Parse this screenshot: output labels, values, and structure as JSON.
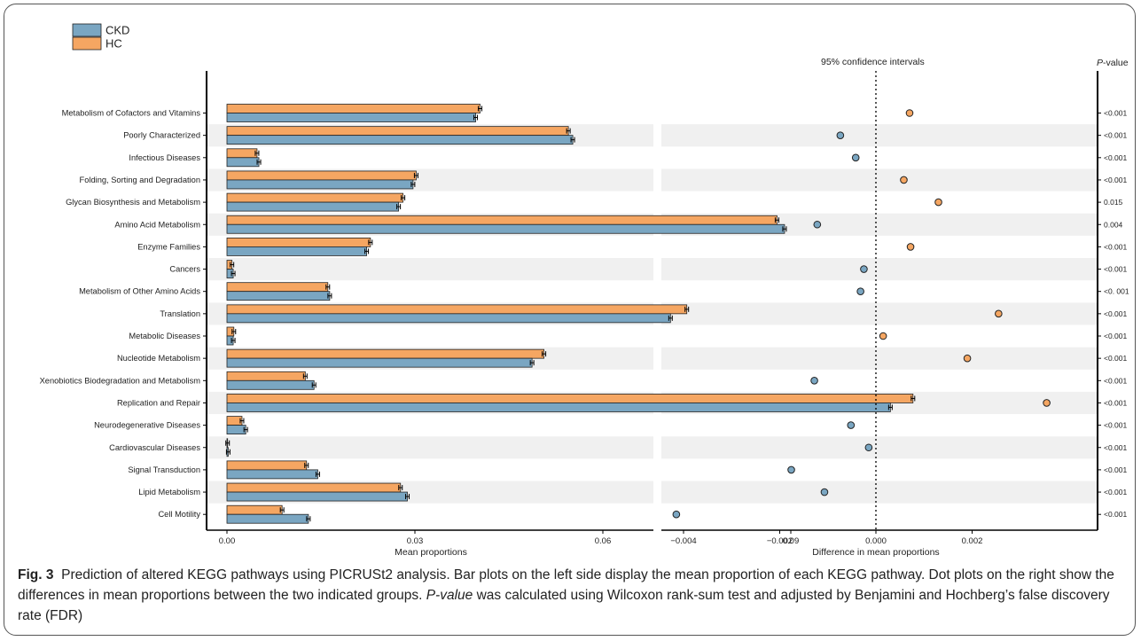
{
  "legend": [
    {
      "label": "CKD",
      "color": "#7aa6c2"
    },
    {
      "label": "HC",
      "color": "#f5a662"
    }
  ],
  "headers": {
    "ci": "95% confidence intervals",
    "pvalue_italic": "P",
    "pvalue_rest": "-value"
  },
  "caption": {
    "label": "Fig. 3",
    "text1": "Prediction of altered KEGG pathways using PICRUSt2 analysis. Bar plots on the left side display the mean proportion of each KEGG pathway. Dot plots on the right show the differences in mean proportions between the two indicated groups. ",
    "italic": "P-value",
    "text2": " was calculated using Wilcoxon rank-sum test and adjusted by Benjamini and Hochberg’s false discovery rate (FDR)"
  },
  "chart_data": [
    {
      "type": "bar",
      "orientation": "horizontal",
      "categories": [
        "Metabolism of Cofactors and Vitamins",
        "Poorly Characterized",
        "Infectious Diseases",
        "Folding, Sorting and Degradation",
        "Glycan Biosynthesis and Metabolism",
        "Amino Acid Metabolism",
        "Enzyme Families",
        "Cancers",
        "Metabolism of Other Amino Acids",
        "Translation",
        "Metabolic Diseases",
        "Nucleotide Metabolism",
        "Xenobiotics Biodegradation and Metabolism",
        "Replication and Repair",
        "Neurodegenerative Diseases",
        "Cardiovascular Diseases",
        "Signal Transduction",
        "Lipid Metabolism",
        "Cell Motility"
      ],
      "series": [
        {
          "name": "HC",
          "color": "#f5a662",
          "values": [
            0.0404,
            0.0545,
            0.0048,
            0.0302,
            0.0281,
            0.0878,
            0.0229,
            0.0008,
            0.0161,
            0.0734,
            0.0011,
            0.0506,
            0.0125,
            0.1095,
            0.0024,
            0.0001,
            0.0127,
            0.0277,
            0.0088
          ]
        },
        {
          "name": "CKD",
          "color": "#7aa6c2",
          "values": [
            0.0397,
            0.0552,
            0.0051,
            0.0297,
            0.0274,
            0.089,
            0.0223,
            0.001,
            0.0164,
            0.0708,
            0.001,
            0.0487,
            0.0139,
            0.1059,
            0.003,
            0.0002,
            0.0145,
            0.0288,
            0.013
          ]
        }
      ],
      "xlabel": "Mean proportions",
      "xticks": [
        "0.00",
        "0.03",
        "0.06",
        "0.09"
      ],
      "xlim": [
        0,
        0.115
      ]
    },
    {
      "type": "scatter",
      "categories": [
        "Metabolism of Cofactors and Vitamins",
        "Poorly Characterized",
        "Infectious Diseases",
        "Folding, Sorting and Degradation",
        "Glycan Biosynthesis and Metabolism",
        "Amino Acid Metabolism",
        "Enzyme Families",
        "Cancers",
        "Metabolism of Other Amino Acids",
        "Translation",
        "Metabolic Diseases",
        "Nucleotide Metabolism",
        "Xenobiotics Biodegradation and Metabolism",
        "Replication and Repair",
        "Neurodegenerative Diseases",
        "Cardiovascular Diseases",
        "Signal Transduction",
        "Lipid Metabolism",
        "Cell Motility"
      ],
      "values": [
        0.0007,
        -0.00074,
        -0.00042,
        0.00058,
        0.0013,
        -0.00122,
        0.00072,
        -0.00025,
        -0.00032,
        0.00255,
        0.00015,
        0.0019,
        -0.00128,
        0.00355,
        -0.00052,
        -0.00015,
        -0.00176,
        -0.00107,
        -0.00415
      ],
      "groups": [
        "HC",
        "CKD",
        "CKD",
        "HC",
        "HC",
        "CKD",
        "HC",
        "CKD",
        "CKD",
        "HC",
        "HC",
        "HC",
        "CKD",
        "HC",
        "CKD",
        "CKD",
        "CKD",
        "CKD",
        "CKD"
      ],
      "pvalues": [
        "<0.001",
        "<0.001",
        "<0.001",
        "<0.001",
        "0.015",
        "0.004",
        "<0.001",
        "<0.001",
        "<0. 001",
        "<0.001",
        "<0.001",
        "<0.001",
        "<0.001",
        "<0.001",
        "<0.001",
        "<0.001",
        "<0.001",
        "<0.001",
        "<0.001"
      ],
      "xlabel": "Difference in mean proportions",
      "xticks": [
        "−0.004",
        "−0.002",
        "0.000",
        "0.002"
      ],
      "tick_values": [
        -0.004,
        -0.002,
        0.0,
        0.002
      ],
      "xlim": [
        -0.0043,
        0.0037
      ],
      "reference_line": 0
    }
  ]
}
